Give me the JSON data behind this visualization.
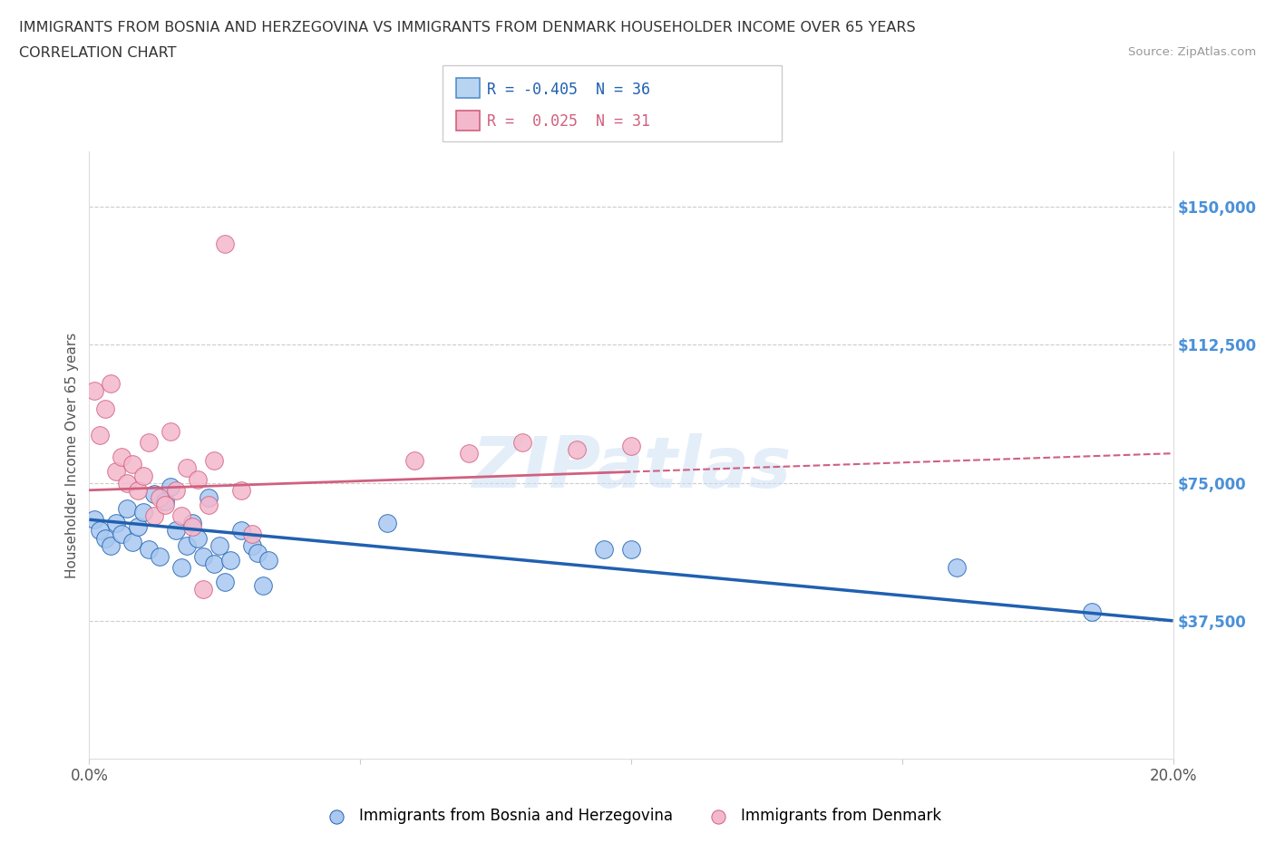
{
  "title_line1": "IMMIGRANTS FROM BOSNIA AND HERZEGOVINA VS IMMIGRANTS FROM DENMARK HOUSEHOLDER INCOME OVER 65 YEARS",
  "title_line2": "CORRELATION CHART",
  "source": "Source: ZipAtlas.com",
  "ylabel": "Householder Income Over 65 years",
  "xmin": 0.0,
  "xmax": 0.2,
  "ymin": 0,
  "ymax": 165000,
  "yticks": [
    37500,
    75000,
    112500,
    150000
  ],
  "ytick_labels": [
    "$37,500",
    "$75,000",
    "$112,500",
    "$150,000"
  ],
  "xticks": [
    0.0,
    0.05,
    0.1,
    0.15,
    0.2
  ],
  "xtick_labels": [
    "0.0%",
    "",
    "",
    "",
    "20.0%"
  ],
  "legend_entry1": "R = -0.405  N = 36",
  "legend_entry2": "R =  0.025  N = 31",
  "legend_label1": "Immigrants from Bosnia and Herzegovina",
  "legend_label2": "Immigrants from Denmark",
  "color_bosnia": "#a8c8f0",
  "color_denmark": "#f4b8cc",
  "color_line_bosnia": "#2060b0",
  "color_line_denmark": "#d06080",
  "watermark": "ZIPatlas",
  "bosnia_x": [
    0.001,
    0.002,
    0.003,
    0.004,
    0.005,
    0.006,
    0.007,
    0.008,
    0.009,
    0.01,
    0.011,
    0.012,
    0.013,
    0.014,
    0.015,
    0.016,
    0.017,
    0.018,
    0.019,
    0.02,
    0.021,
    0.022,
    0.023,
    0.024,
    0.025,
    0.026,
    0.028,
    0.03,
    0.031,
    0.032,
    0.033,
    0.055,
    0.095,
    0.1,
    0.16,
    0.185
  ],
  "bosnia_y": [
    65000,
    62000,
    60000,
    58000,
    64000,
    61000,
    68000,
    59000,
    63000,
    67000,
    57000,
    72000,
    55000,
    70000,
    74000,
    62000,
    52000,
    58000,
    64000,
    60000,
    55000,
    71000,
    53000,
    58000,
    48000,
    54000,
    62000,
    58000,
    56000,
    47000,
    54000,
    64000,
    57000,
    57000,
    52000,
    40000
  ],
  "denmark_x": [
    0.001,
    0.002,
    0.003,
    0.004,
    0.005,
    0.006,
    0.007,
    0.008,
    0.009,
    0.01,
    0.011,
    0.012,
    0.013,
    0.014,
    0.015,
    0.016,
    0.017,
    0.018,
    0.019,
    0.02,
    0.021,
    0.022,
    0.023,
    0.025,
    0.028,
    0.03,
    0.06,
    0.07,
    0.08,
    0.09,
    0.1
  ],
  "denmark_y": [
    100000,
    88000,
    95000,
    102000,
    78000,
    82000,
    75000,
    80000,
    73000,
    77000,
    86000,
    66000,
    71000,
    69000,
    89000,
    73000,
    66000,
    79000,
    63000,
    76000,
    46000,
    69000,
    81000,
    140000,
    73000,
    61000,
    81000,
    83000,
    86000,
    84000,
    85000
  ]
}
